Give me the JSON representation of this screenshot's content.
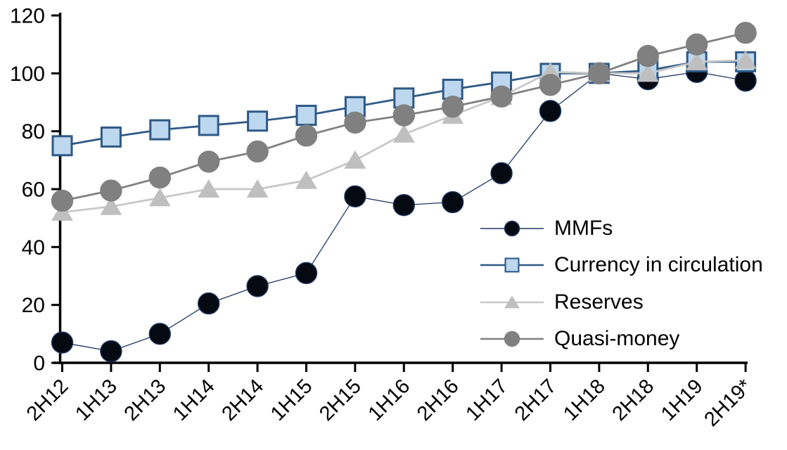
{
  "chart_data": {
    "type": "line",
    "title": "",
    "categories": [
      "2H12",
      "1H13",
      "2H13",
      "1H14",
      "2H14",
      "1H15",
      "2H15",
      "1H16",
      "2H16",
      "1H17",
      "2H17",
      "1H18",
      "2H18",
      "1H19",
      "2H19*"
    ],
    "series": [
      {
        "name": "MMFs",
        "marker": "circle",
        "marker_fill": "#050a12",
        "marker_stroke": "#1F3864",
        "line_color": "#1F3864",
        "line_width": 1.3,
        "values": [
          7,
          4,
          10,
          20.5,
          26.5,
          31,
          57.5,
          54.5,
          55.5,
          65.5,
          87,
          100,
          98,
          100.5,
          97.5
        ]
      },
      {
        "name": "Currency in circulation",
        "marker": "square",
        "marker_fill": "#BDD7EE",
        "marker_stroke": "#2D5986",
        "line_color": "#2D5986",
        "line_width": 2.8,
        "values": [
          75,
          78,
          80.5,
          82,
          83.5,
          85.5,
          88.5,
          91.5,
          94.5,
          97,
          100,
          100,
          101,
          104,
          104
        ]
      },
      {
        "name": "Reserves",
        "marker": "triangle",
        "marker_fill": "#BFBFBF",
        "marker_stroke": "#BFBFBF",
        "line_color": "#C8C8C8",
        "line_width": 2.8,
        "values": [
          52,
          54,
          57,
          60,
          60,
          63,
          70,
          79,
          85.5,
          92,
          100.5,
          100,
          100,
          104,
          104.5
        ]
      },
      {
        "name": "Quasi-money",
        "marker": "circle",
        "marker_fill": "#808080",
        "marker_stroke": "#808080",
        "line_color": "#808080",
        "line_width": 2.8,
        "values": [
          56,
          59.5,
          64,
          69.5,
          73,
          78.5,
          83,
          85.5,
          88.5,
          92,
          96,
          100,
          106,
          110,
          114
        ]
      }
    ],
    "y_axis": {
      "min": 0,
      "max": 120,
      "tick_interval": 20,
      "tick_labels": [
        "0",
        "20",
        "40",
        "60",
        "80",
        "100",
        "120"
      ]
    },
    "x_axis": {
      "label_rotation": -45
    },
    "legend_position": "inside-right",
    "grid": false,
    "axis_color": "#000000",
    "background": "#FFFFFF"
  }
}
